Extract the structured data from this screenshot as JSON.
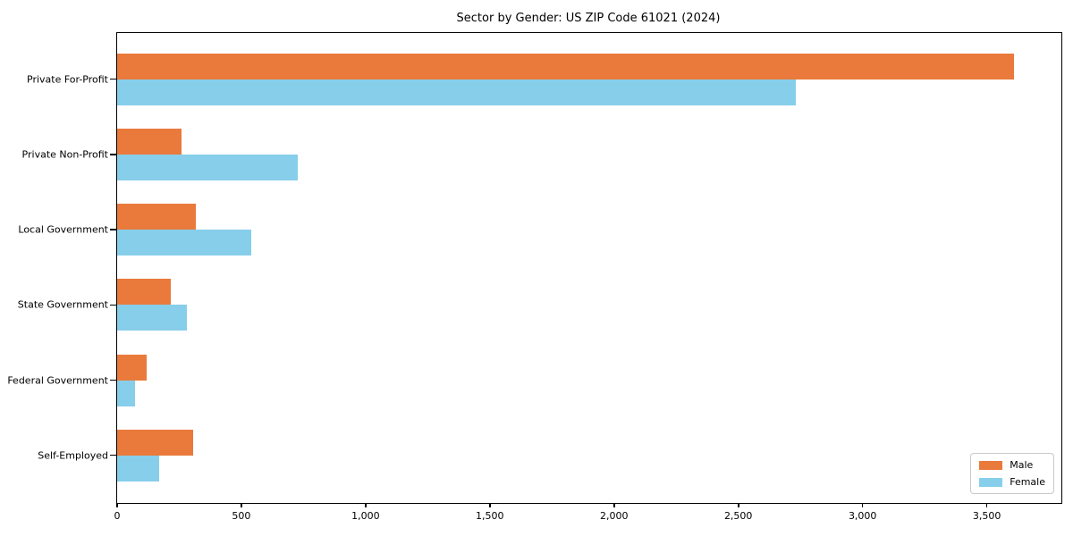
{
  "chart_data": {
    "type": "bar",
    "orientation": "horizontal",
    "title": "Sector by Gender: US ZIP Code 61021 (2024)",
    "categories": [
      "Private For-Profit",
      "Private Non-Profit",
      "Local Government",
      "State Government",
      "Federal Government",
      "Self-Employed"
    ],
    "series": [
      {
        "name": "Male",
        "color": "#e97a3c",
        "values": [
          3610,
          260,
          315,
          215,
          120,
          305
        ]
      },
      {
        "name": "Female",
        "color": "#87ceeb",
        "values": [
          2730,
          725,
          540,
          280,
          70,
          170
        ]
      }
    ],
    "xlabel": "",
    "ylabel": "",
    "xlim": [
      0,
      3800
    ],
    "xticks": [
      0,
      500,
      1000,
      1500,
      2000,
      2500,
      3000,
      3500
    ],
    "grid": false,
    "legend_position": "lower right",
    "legend_labels": [
      "Male",
      "Female"
    ],
    "spine_color": "#000000",
    "background_color": "#ffffff"
  }
}
